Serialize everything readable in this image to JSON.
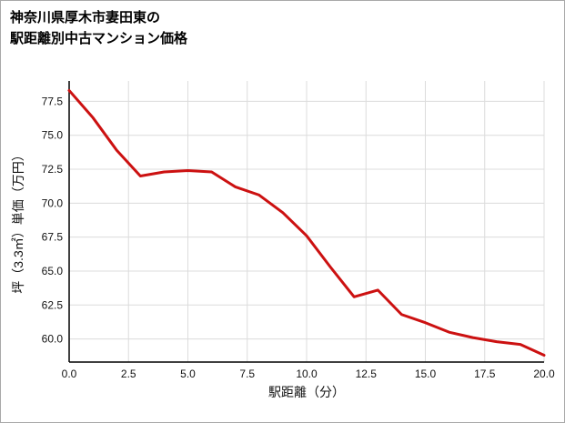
{
  "title": {
    "line1": "神奈川県厚木市妻田東の",
    "line2": "駅距離別中古マンション価格"
  },
  "chart_data": {
    "type": "line",
    "title": "神奈川県厚木市妻田東の駅距離別中古マンション価格",
    "xlabel": "駅距離（分）",
    "ylabel": "坪（3.3㎡）単価（万円）",
    "x": [
      0,
      1,
      2,
      3,
      4,
      5,
      6,
      7,
      8,
      9,
      10,
      11,
      12,
      13,
      14,
      15,
      16,
      17,
      18,
      19,
      20
    ],
    "y": [
      78.3,
      76.3,
      73.9,
      72.0,
      72.3,
      72.4,
      72.3,
      71.2,
      70.6,
      69.3,
      67.6,
      65.3,
      63.1,
      63.6,
      61.8,
      61.2,
      60.5,
      60.1,
      59.8,
      59.6,
      58.8
    ],
    "xlim": [
      0,
      20
    ],
    "ylim": [
      58.3,
      79.0
    ],
    "xticks": [
      0.0,
      2.5,
      5.0,
      7.5,
      10.0,
      12.5,
      15.0,
      17.5,
      20.0
    ],
    "yticks": [
      60.0,
      62.5,
      65.0,
      67.5,
      70.0,
      72.5,
      75.0,
      77.5
    ],
    "grid": true,
    "legend": "none",
    "line_color": "#cc1111",
    "line_width": 3,
    "grid_color": "#dcdcdc",
    "axis_color": "#000000"
  }
}
